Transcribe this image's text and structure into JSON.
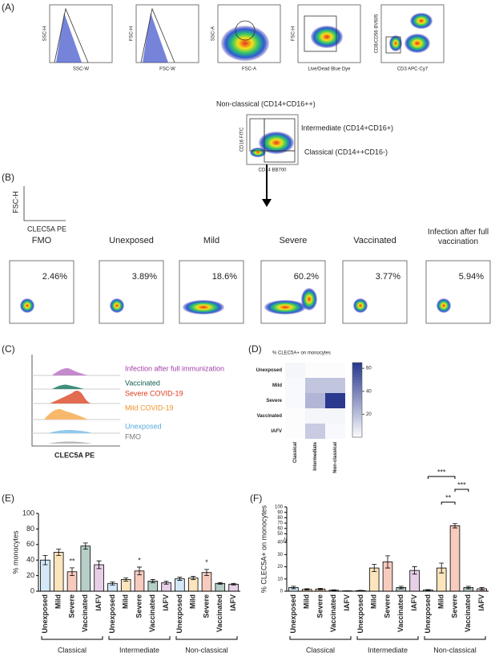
{
  "panel_labels": [
    "(A)",
    "(B)",
    "(C)",
    "(D)",
    "(E)",
    "(F)"
  ],
  "gating": {
    "plots": [
      {
        "y": "SSC-H",
        "x": "SSC-W"
      },
      {
        "y": "FSC-H",
        "x": "FSC-W"
      },
      {
        "y": "SSC-A",
        "x": "FSC-A"
      },
      {
        "y": "FSC-H",
        "x": "Live/Dead Blue Dye"
      },
      {
        "y": "CD8/CD56 BV605",
        "x": "CD3 APC-Cy7"
      }
    ],
    "monocytes": {
      "y": "CD16 FITC",
      "x": "CD14 BB700",
      "gates": [
        "Non-classical (CD14+CD16++)",
        "Intermediate (CD14+CD16+)",
        "Classical (CD14++CD16-)"
      ]
    }
  },
  "phenotype": {
    "y": "FSC-H",
    "x": "CLEC5A PE",
    "groups": [
      {
        "name": "FMO",
        "percent": "2.46%"
      },
      {
        "name": "Unexposed",
        "percent": "3.89%"
      },
      {
        "name": "Mild",
        "percent": "18.6%"
      },
      {
        "name": "Severe",
        "percent": "60.2%"
      },
      {
        "name": "Vaccinated",
        "percent": "3.77%"
      },
      {
        "name": "Infection after full vaccination",
        "percent": "5.94%"
      }
    ]
  },
  "histogram": {
    "x": "CLEC5A PE",
    "legend": [
      {
        "name": "Infection after full immunization",
        "color": "#a23fa8"
      },
      {
        "name": "Vaccinated",
        "color": "#0f5c4a"
      },
      {
        "name": "Severe COVID-19",
        "color": "#e03a1e"
      },
      {
        "name": "Mild COVID-19",
        "color": "#f0932b"
      },
      {
        "name": "Unexposed",
        "color": "#5aa8de"
      },
      {
        "name": "FMO",
        "color": "#777777"
      }
    ]
  },
  "chart_data": [
    {
      "type": "heatmap",
      "title": "% CLEC5A+ on monocytes",
      "rows": [
        "Unexposed",
        "Mild",
        "Severe",
        "Vaccinated",
        "IAFV"
      ],
      "columns": [
        "Classical",
        "Intermediate",
        "Non-classical"
      ],
      "values": [
        [
          3,
          1,
          1
        ],
        [
          2,
          19,
          19
        ],
        [
          2,
          24,
          65
        ],
        [
          1,
          3,
          3
        ],
        [
          1,
          17,
          2
        ]
      ],
      "colorbar_lim": [
        0,
        65
      ],
      "colorbar_ticks": [
        20,
        40,
        60
      ],
      "colors": [
        "#ffffff",
        "#2b3a8f"
      ]
    },
    {
      "type": "bar",
      "y_label": "% monocytes",
      "groups": [
        "Classical",
        "Intermediate",
        "Non-classical"
      ],
      "categories": [
        "Unexposed",
        "Mild",
        "Severe",
        "Vaccinated",
        "IAFV",
        "Unexposed",
        "Mild",
        "Severe",
        "Vaccinated",
        "IAFV",
        "Unexposed",
        "Mild",
        "Severe",
        "Vaccinated",
        "IAFV"
      ],
      "values": [
        40,
        50,
        25,
        58,
        34,
        10,
        15,
        26,
        13,
        11,
        16,
        17,
        24,
        10,
        9
      ],
      "errors": [
        6,
        4,
        5,
        4,
        5,
        2,
        2,
        5,
        2,
        2,
        2,
        2,
        4,
        1,
        1
      ],
      "palette": [
        "#6fb3e3",
        "#f5a623",
        "#e8532b",
        "#0f5c4a",
        "#b45fb4"
      ],
      "significance": [
        null,
        null,
        "**",
        null,
        null,
        null,
        null,
        "*",
        null,
        null,
        null,
        null,
        "*",
        null,
        null
      ],
      "ylim": [
        0,
        100
      ],
      "yticks": [
        0,
        20,
        40,
        60,
        80,
        100
      ]
    },
    {
      "type": "bar",
      "y_label": "% CLEC5A+ on monocytes",
      "groups": [
        "Classical",
        "Intermediate",
        "Non-classical"
      ],
      "categories": [
        "Unexposed",
        "Mild",
        "Severe",
        "Vaccinated",
        "IAFV",
        "Unexposed",
        "Mild",
        "Severe",
        "Vaccinated",
        "IAFV",
        "Unexposed",
        "Mild",
        "Severe",
        "Vaccinated",
        "IAFV"
      ],
      "values": [
        3,
        1.5,
        1.8,
        0.8,
        0.3,
        0.5,
        19,
        24,
        3,
        17,
        1,
        19,
        65,
        3,
        2
      ],
      "errors": [
        1,
        0.5,
        0.6,
        0.3,
        0.1,
        0.2,
        3,
        5,
        1,
        3,
        0.3,
        4,
        4,
        1,
        1
      ],
      "palette": [
        "#6fb3e3",
        "#f5a623",
        "#e8532b",
        "#0f5c4a",
        "#b45fb4"
      ],
      "comparisons": [
        {
          "pair": [
            11,
            12
          ],
          "label": "**"
        },
        {
          "pair": [
            12,
            13
          ],
          "label": "***"
        },
        {
          "pair": [
            10,
            12
          ],
          "label": "***"
        }
      ],
      "ylim": [
        0,
        100
      ],
      "axis_break": 40,
      "yticks": [
        0,
        10,
        20,
        30,
        40,
        50,
        60,
        70,
        80,
        90,
        100
      ]
    }
  ]
}
